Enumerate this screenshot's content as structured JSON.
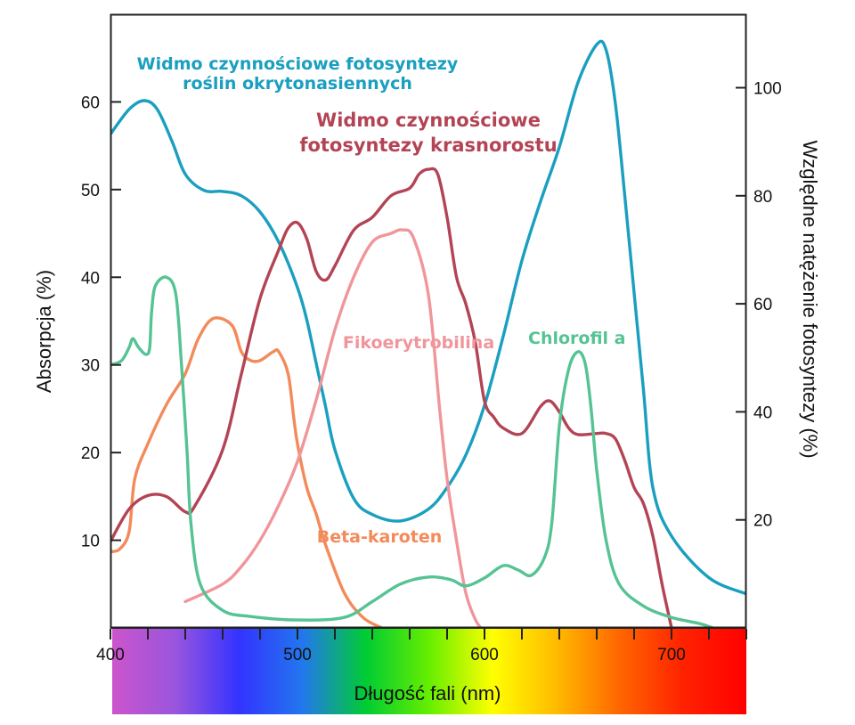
{
  "chart_data": {
    "type": "line",
    "xlabel": "Długość fali (nm)",
    "ylabel_left": "Absorpcja (%)",
    "ylabel_right": "Względne natężenie fotosyntezy (%)",
    "x_range": [
      400,
      740
    ],
    "y_left_range": [
      0,
      70
    ],
    "y_right_range": [
      0,
      113.6
    ],
    "x_ticks": [
      400,
      500,
      600,
      700
    ],
    "y_left_ticks": [
      10,
      20,
      30,
      40,
      50,
      60
    ],
    "y_right_ticks": [
      20,
      40,
      60,
      80,
      100
    ],
    "spectrum_gradient": [
      "#cc55cc",
      "#9955dd",
      "#3333ff",
      "#2277ee",
      "#00cc33",
      "#66ee00",
      "#ffff00",
      "#ffbb00",
      "#ff6600",
      "#ff2200",
      "#ff0000"
    ],
    "series": [
      {
        "name": "Widmo czynnościowe fotosyntezy roślin okrytonasiennych",
        "axis": "right",
        "color": "#1a9fc0",
        "points": [
          [
            400,
            91.4
          ],
          [
            410,
            96
          ],
          [
            418,
            97.6
          ],
          [
            425,
            96
          ],
          [
            433,
            90
          ],
          [
            440,
            84
          ],
          [
            450,
            81
          ],
          [
            460,
            80.8
          ],
          [
            470,
            80
          ],
          [
            480,
            77
          ],
          [
            490,
            71.4
          ],
          [
            500,
            63
          ],
          [
            505,
            57
          ],
          [
            510,
            49
          ],
          [
            515,
            41
          ],
          [
            520,
            33
          ],
          [
            530,
            24
          ],
          [
            540,
            21
          ],
          [
            555,
            19.8
          ],
          [
            570,
            22
          ],
          [
            580,
            26
          ],
          [
            590,
            32
          ],
          [
            600,
            41.2
          ],
          [
            610,
            54
          ],
          [
            620,
            68
          ],
          [
            630,
            79
          ],
          [
            640,
            89
          ],
          [
            650,
            101
          ],
          [
            660,
            108
          ],
          [
            665,
            107
          ],
          [
            670,
            97
          ],
          [
            675,
            80
          ],
          [
            680,
            62
          ],
          [
            685,
            44
          ],
          [
            690,
            26
          ],
          [
            700,
            17
          ],
          [
            720,
            9.3
          ],
          [
            740,
            6.3
          ]
        ]
      },
      {
        "name": "Widmo czynnościowe fotosyntezy krasnorostu",
        "axis": "right",
        "color": "#b34455",
        "points": [
          [
            400,
            16
          ],
          [
            410,
            22
          ],
          [
            420,
            24.5
          ],
          [
            430,
            24.3
          ],
          [
            440,
            21.5
          ],
          [
            445,
            22.5
          ],
          [
            460,
            33
          ],
          [
            470,
            47
          ],
          [
            480,
            61
          ],
          [
            490,
            70
          ],
          [
            495,
            74
          ],
          [
            500,
            75
          ],
          [
            505,
            72
          ],
          [
            510,
            66
          ],
          [
            515,
            64.4
          ],
          [
            520,
            67
          ],
          [
            530,
            73.6
          ],
          [
            540,
            76
          ],
          [
            550,
            80
          ],
          [
            560,
            81.4
          ],
          [
            565,
            84
          ],
          [
            570,
            84.9
          ],
          [
            575,
            84
          ],
          [
            580,
            76
          ],
          [
            585,
            65
          ],
          [
            590,
            60
          ],
          [
            595,
            53
          ],
          [
            600,
            42
          ],
          [
            605,
            39
          ],
          [
            610,
            37
          ],
          [
            620,
            36
          ],
          [
            630,
            41
          ],
          [
            635,
            42
          ],
          [
            640,
            40
          ],
          [
            645,
            37
          ],
          [
            650,
            35.8
          ],
          [
            660,
            36
          ],
          [
            665,
            36
          ],
          [
            670,
            35
          ],
          [
            675,
            31
          ],
          [
            680,
            26
          ],
          [
            685,
            23
          ],
          [
            690,
            17
          ],
          [
            695,
            8
          ],
          [
            700,
            0
          ]
        ]
      },
      {
        "name": "Chlorofil a",
        "axis": "left",
        "color": "#55c393",
        "points": [
          [
            400,
            30
          ],
          [
            406,
            30.5
          ],
          [
            410,
            32
          ],
          [
            412,
            33
          ],
          [
            415,
            32
          ],
          [
            419,
            31.2
          ],
          [
            421,
            32
          ],
          [
            422,
            36
          ],
          [
            424,
            39
          ],
          [
            430,
            40
          ],
          [
            435,
            38
          ],
          [
            438,
            30
          ],
          [
            441,
            20
          ],
          [
            443,
            12
          ],
          [
            448,
            5
          ],
          [
            460,
            2
          ],
          [
            475,
            1.3
          ],
          [
            500,
            0.9
          ],
          [
            525,
            1.2
          ],
          [
            540,
            3
          ],
          [
            555,
            5
          ],
          [
            570,
            5.8
          ],
          [
            582,
            5.5
          ],
          [
            590,
            4.8
          ],
          [
            600,
            5.7
          ],
          [
            610,
            7.1
          ],
          [
            618,
            6.6
          ],
          [
            625,
            6
          ],
          [
            632,
            8
          ],
          [
            636,
            12
          ],
          [
            640,
            23
          ],
          [
            645,
            29.5
          ],
          [
            650,
            31.5
          ],
          [
            654,
            30
          ],
          [
            657,
            25
          ],
          [
            660,
            18
          ],
          [
            665,
            10
          ],
          [
            672,
            5
          ],
          [
            685,
            2.5
          ],
          [
            700,
            1.2
          ],
          [
            715,
            0.5
          ],
          [
            722,
            0
          ]
        ]
      },
      {
        "name": "Fikoerytrobilina",
        "axis": "left",
        "color": "#f0969b",
        "points": [
          [
            440,
            3
          ],
          [
            460,
            5
          ],
          [
            470,
            7
          ],
          [
            480,
            10
          ],
          [
            490,
            14
          ],
          [
            500,
            19
          ],
          [
            510,
            26
          ],
          [
            520,
            34
          ],
          [
            530,
            40
          ],
          [
            540,
            44
          ],
          [
            550,
            45
          ],
          [
            556,
            45.4
          ],
          [
            562,
            44.5
          ],
          [
            570,
            38
          ],
          [
            576,
            25
          ],
          [
            580,
            17
          ],
          [
            585,
            10
          ],
          [
            590,
            4
          ],
          [
            595,
            1
          ],
          [
            598,
            0
          ]
        ]
      },
      {
        "name": "Beta-karoten",
        "axis": "left",
        "color": "#f38a5a",
        "points": [
          [
            400,
            8.7
          ],
          [
            405,
            9
          ],
          [
            410,
            11
          ],
          [
            413,
            17
          ],
          [
            420,
            21
          ],
          [
            430,
            25.5
          ],
          [
            440,
            29
          ],
          [
            447,
            33
          ],
          [
            455,
            35.3
          ],
          [
            465,
            34.5
          ],
          [
            470,
            31.5
          ],
          [
            475,
            30.5
          ],
          [
            480,
            30.5
          ],
          [
            487,
            31.5
          ],
          [
            490,
            31.5
          ],
          [
            495,
            29
          ],
          [
            498,
            24
          ],
          [
            500,
            21
          ],
          [
            505,
            16
          ],
          [
            510,
            13
          ],
          [
            515,
            9.5
          ],
          [
            525,
            4
          ],
          [
            535,
            1.2
          ],
          [
            545,
            0
          ]
        ]
      }
    ],
    "labels": [
      {
        "series": 0,
        "text": "Widmo czynnościowe fotosyntezy",
        "color": "#1a9fc0"
      },
      {
        "series": 0,
        "text": "roślin okrytonasiennych",
        "color": "#1a9fc0"
      },
      {
        "series": 1,
        "text": "Widmo czynnościowe",
        "color": "#b34455"
      },
      {
        "series": 1,
        "text": "fotosyntezy krasnorostu",
        "color": "#b34455"
      },
      {
        "series": 3,
        "text": "Fikoerytrobilina",
        "color": "#f0969b"
      },
      {
        "series": 2,
        "text": "Chlorofil a",
        "color": "#55c393"
      },
      {
        "series": 4,
        "text": "Beta-karoten",
        "color": "#f38a5a"
      }
    ]
  }
}
